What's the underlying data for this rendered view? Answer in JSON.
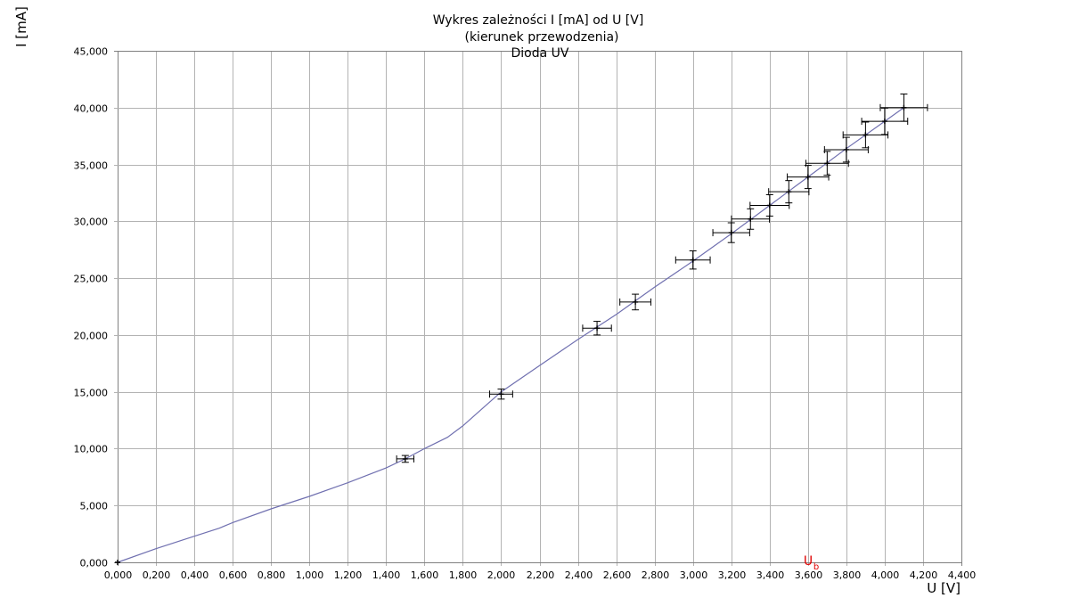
{
  "chart_data": {
    "type": "scatter",
    "title_lines": [
      "Wykres zależności I [mA] od U [V]",
      "(kierunek przewodzenia)",
      "Dioda UV"
    ],
    "xlabel": "U [V]",
    "ylabel": "I [mA]",
    "xlim": [
      0,
      4.4
    ],
    "ylim": [
      0,
      45
    ],
    "x_ticks": [
      "0,000",
      "0,200",
      "0,400",
      "0,600",
      "0,800",
      "1,000",
      "1,200",
      "1,400",
      "1,600",
      "1,800",
      "2,000",
      "2,200",
      "2,400",
      "2,600",
      "2,800",
      "3,000",
      "3,200",
      "3,400",
      "3,600",
      "3,800",
      "4,000",
      "4,200",
      "4,400"
    ],
    "y_ticks": [
      "0,000",
      "5,000",
      "10,000",
      "15,000",
      "20,000",
      "25,000",
      "30,000",
      "35,000",
      "40,000",
      "45,000"
    ],
    "grid": true,
    "annotation": {
      "label": "U",
      "subscript": "b",
      "x": 3.6
    },
    "points": {
      "x": [
        0.0,
        1.5,
        2.0,
        2.5,
        2.7,
        3.0,
        3.2,
        3.3,
        3.4,
        3.5,
        3.6,
        3.7,
        3.8,
        3.9,
        4.0,
        4.1
      ],
      "y": [
        0.0,
        9.1,
        14.8,
        20.6,
        22.9,
        26.6,
        29.0,
        30.2,
        31.4,
        32.6,
        33.9,
        35.1,
        36.3,
        37.6,
        38.8,
        40.0
      ],
      "x_err": [
        0.0,
        0.045,
        0.06,
        0.075,
        0.081,
        0.09,
        0.096,
        0.099,
        0.102,
        0.105,
        0.108,
        0.111,
        0.114,
        0.117,
        0.12,
        0.123
      ],
      "y_err": [
        0.0,
        0.3,
        0.44,
        0.6,
        0.69,
        0.8,
        0.87,
        0.9,
        0.94,
        0.98,
        1.02,
        1.05,
        1.09,
        1.13,
        1.16,
        1.2
      ]
    },
    "fit_line": {
      "color": "#7070b0",
      "x": [
        0.0,
        0.2,
        0.4,
        0.53,
        0.6,
        0.8,
        1.0,
        1.2,
        1.4,
        1.5,
        1.6,
        1.72,
        1.8,
        1.9,
        2.0,
        2.2,
        2.4,
        2.6,
        2.8,
        3.0,
        3.2,
        3.4,
        3.6,
        3.8,
        4.0,
        4.1
      ],
      "y": [
        0.0,
        1.2,
        2.3,
        3.0,
        3.5,
        4.7,
        5.8,
        7.0,
        8.3,
        9.1,
        10.0,
        11.0,
        12.0,
        13.5,
        15.0,
        17.3,
        19.6,
        21.8,
        24.2,
        26.5,
        28.9,
        31.4,
        33.9,
        36.4,
        38.8,
        40.0
      ]
    },
    "colors": {
      "grid": "#b3b3b3",
      "axis": "#808080",
      "points": "#000000",
      "annotation": "#e00000"
    }
  }
}
